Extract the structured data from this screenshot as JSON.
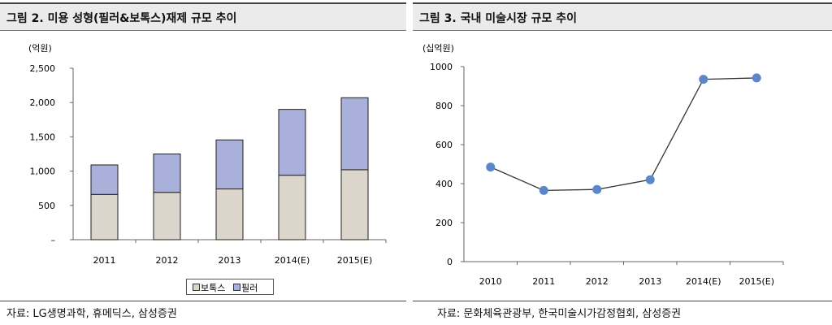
{
  "left_panel": {
    "title": "그림 2. 미용 성형(필러&보톡스)재제 규모 추이",
    "source": "자료: LG생명과학, 휴메딕스, 삼성증권"
  },
  "right_panel": {
    "title": "그림 3. 국내 미술시장 규모 추이",
    "source": "자료: 문화체육관광부, 한국미술시가감정협회, 삼성증권"
  },
  "chart_data": [
    {
      "type": "bar",
      "stacked": true,
      "unit_label": "(억원)",
      "categories": [
        "2011",
        "2012",
        "2013",
        "2014(E)",
        "2015(E)"
      ],
      "series": [
        {
          "name": "보톡스",
          "values": [
            660,
            690,
            740,
            940,
            1020
          ],
          "color": "#dcd5cc"
        },
        {
          "name": "필러",
          "values": [
            430,
            560,
            715,
            960,
            1050
          ],
          "color": "#a9b0da"
        }
      ],
      "ylim": [
        0,
        2500
      ],
      "yticks": [
        0,
        500,
        1000,
        1500,
        2000,
        2500
      ],
      "ytick_labels": [
        "–",
        "500",
        "1,000",
        "1,500",
        "2,000",
        "2,500"
      ],
      "legend": "bottom-center",
      "grid": false
    },
    {
      "type": "line",
      "unit_label": "(십억원)",
      "x": [
        "2010",
        "2011",
        "2012",
        "2013",
        "2014(E)",
        "2015(E)"
      ],
      "series": [
        {
          "values": [
            485,
            365,
            370,
            420,
            935,
            942
          ],
          "color": "#5b87c9"
        }
      ],
      "ylim": [
        0,
        1000
      ],
      "yticks": [
        0,
        200,
        400,
        600,
        800,
        1000
      ],
      "ytick_labels": [
        "0",
        "200",
        "400",
        "600",
        "800",
        "1000"
      ],
      "grid": false
    }
  ]
}
